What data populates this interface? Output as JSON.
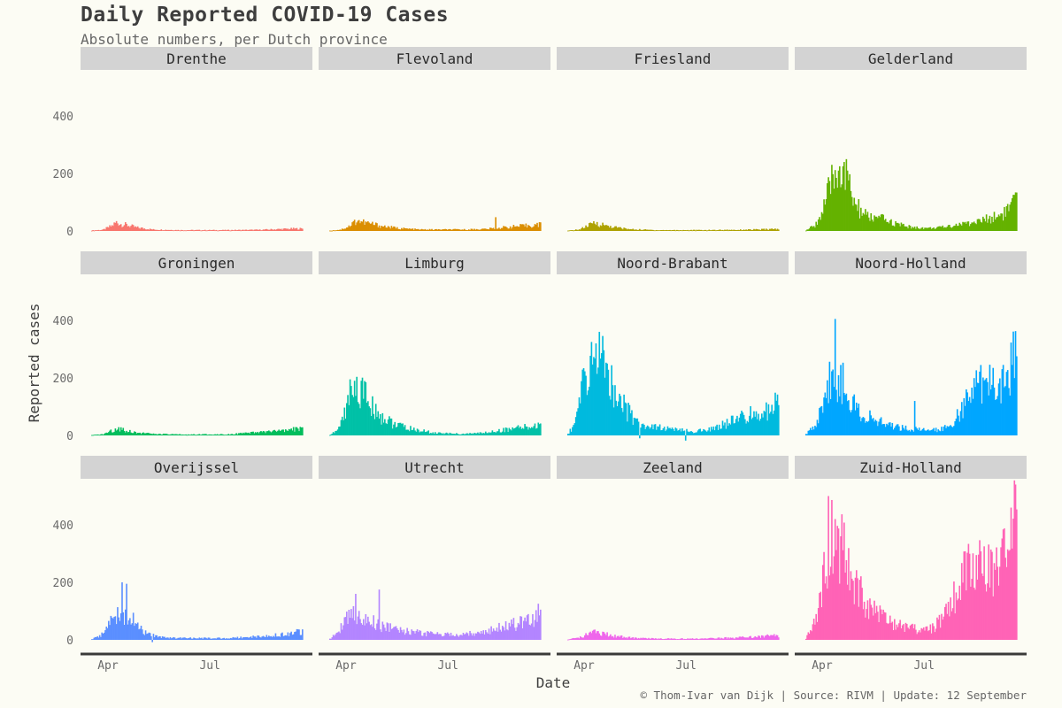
{
  "chart_data": {
    "type": "bar",
    "layout": "facet-grid-3x4",
    "title": "Daily Reported COVID-19 Cases",
    "subtitle": "Absolute numbers, per Dutch province",
    "xlabel": "Date",
    "ylabel": "Reported cases",
    "caption": "© Thom-Ivar van Dijk | Source: RIVM | Update: 12 September",
    "xlim_days": [
      0,
      188
    ],
    "ylim": [
      -20,
      540
    ],
    "yticks": [
      0,
      200,
      400
    ],
    "xticks": [
      {
        "label": "Apr",
        "day": 15
      },
      {
        "label": "Jul",
        "day": 106
      }
    ],
    "series": [
      {
        "name": "Drenthe",
        "color": "#F8766D",
        "profile": [
          [
            0,
            2
          ],
          [
            10,
            4
          ],
          [
            18,
            18
          ],
          [
            22,
            30
          ],
          [
            26,
            24
          ],
          [
            32,
            20
          ],
          [
            40,
            12
          ],
          [
            55,
            5
          ],
          [
            80,
            3
          ],
          [
            120,
            3
          ],
          [
            150,
            4
          ],
          [
            165,
            6
          ],
          [
            180,
            8
          ],
          [
            188,
            8
          ]
        ]
      },
      {
        "name": "Flevoland",
        "color": "#DB8E00",
        "profile": [
          [
            0,
            1
          ],
          [
            10,
            5
          ],
          [
            18,
            18
          ],
          [
            24,
            38
          ],
          [
            30,
            30
          ],
          [
            38,
            24
          ],
          [
            48,
            16
          ],
          [
            60,
            10
          ],
          [
            80,
            5
          ],
          [
            120,
            5
          ],
          [
            140,
            7
          ],
          [
            160,
            14
          ],
          [
            175,
            18
          ],
          [
            188,
            22
          ]
        ],
        "spikes": [
          [
            148,
            48
          ]
        ]
      },
      {
        "name": "Friesland",
        "color": "#AEA200",
        "profile": [
          [
            0,
            1
          ],
          [
            10,
            5
          ],
          [
            18,
            18
          ],
          [
            24,
            28
          ],
          [
            30,
            22
          ],
          [
            40,
            14
          ],
          [
            55,
            6
          ],
          [
            80,
            3
          ],
          [
            120,
            3
          ],
          [
            150,
            4
          ],
          [
            170,
            5
          ],
          [
            188,
            7
          ]
        ]
      },
      {
        "name": "Gelderland",
        "color": "#64B200",
        "profile": [
          [
            0,
            2
          ],
          [
            8,
            20
          ],
          [
            14,
            60
          ],
          [
            20,
            130
          ],
          [
            24,
            180
          ],
          [
            28,
            210
          ],
          [
            34,
            200
          ],
          [
            38,
            160
          ],
          [
            44,
            90
          ],
          [
            52,
            55
          ],
          [
            60,
            45
          ],
          [
            70,
            40
          ],
          [
            80,
            25
          ],
          [
            95,
            12
          ],
          [
            110,
            10
          ],
          [
            120,
            12
          ],
          [
            135,
            22
          ],
          [
            150,
            30
          ],
          [
            165,
            45
          ],
          [
            175,
            60
          ],
          [
            182,
            80
          ],
          [
            188,
            110
          ]
        ],
        "spikes": [
          [
            23,
            230
          ],
          [
            30,
            225
          ],
          [
            33,
            225
          ],
          [
            37,
            210
          ]
        ]
      },
      {
        "name": "Groningen",
        "color": "#00BD5C",
        "profile": [
          [
            0,
            1
          ],
          [
            10,
            4
          ],
          [
            18,
            16
          ],
          [
            24,
            25
          ],
          [
            30,
            18
          ],
          [
            40,
            10
          ],
          [
            55,
            5
          ],
          [
            80,
            3
          ],
          [
            120,
            4
          ],
          [
            140,
            8
          ],
          [
            160,
            14
          ],
          [
            175,
            16
          ],
          [
            186,
            25
          ],
          [
            188,
            35
          ]
        ]
      },
      {
        "name": "Limburg",
        "color": "#00C1A7",
        "profile": [
          [
            0,
            2
          ],
          [
            6,
            15
          ],
          [
            12,
            60
          ],
          [
            18,
            130
          ],
          [
            22,
            150
          ],
          [
            26,
            155
          ],
          [
            30,
            140
          ],
          [
            36,
            110
          ],
          [
            42,
            80
          ],
          [
            50,
            55
          ],
          [
            60,
            35
          ],
          [
            75,
            20
          ],
          [
            95,
            8
          ],
          [
            120,
            5
          ],
          [
            140,
            10
          ],
          [
            160,
            22
          ],
          [
            175,
            28
          ],
          [
            188,
            35
          ]
        ],
        "spikes": [
          [
            18,
            195
          ],
          [
            22,
            190
          ],
          [
            28,
            190
          ],
          [
            32,
            185
          ]
        ]
      },
      {
        "name": "Noord-Brabant",
        "color": "#00BADE",
        "profile": [
          [
            0,
            5
          ],
          [
            6,
            40
          ],
          [
            12,
            150
          ],
          [
            18,
            220
          ],
          [
            22,
            260
          ],
          [
            26,
            280
          ],
          [
            30,
            260
          ],
          [
            36,
            210
          ],
          [
            42,
            160
          ],
          [
            50,
            100
          ],
          [
            58,
            60
          ],
          [
            66,
            40
          ],
          [
            80,
            28
          ],
          [
            95,
            20
          ],
          [
            110,
            14
          ],
          [
            125,
            18
          ],
          [
            140,
            40
          ],
          [
            155,
            60
          ],
          [
            165,
            75
          ],
          [
            175,
            85
          ],
          [
            182,
            95
          ],
          [
            188,
            110
          ]
        ],
        "spikes": [
          [
            21,
            325
          ],
          [
            25,
            320
          ]
        ],
        "dips": [
          [
            64,
            -10
          ],
          [
            105,
            -18
          ]
        ]
      },
      {
        "name": "Noord-Holland",
        "color": "#00A6FF",
        "profile": [
          [
            0,
            4
          ],
          [
            8,
            35
          ],
          [
            14,
            110
          ],
          [
            20,
            170
          ],
          [
            26,
            210
          ],
          [
            30,
            200
          ],
          [
            36,
            150
          ],
          [
            44,
            100
          ],
          [
            52,
            70
          ],
          [
            62,
            50
          ],
          [
            75,
            35
          ],
          [
            90,
            25
          ],
          [
            105,
            18
          ],
          [
            118,
            20
          ],
          [
            130,
            40
          ],
          [
            140,
            95
          ],
          [
            148,
            150
          ],
          [
            156,
            180
          ],
          [
            164,
            175
          ],
          [
            172,
            185
          ],
          [
            178,
            210
          ],
          [
            184,
            260
          ],
          [
            188,
            320
          ]
        ],
        "spikes": [
          [
            26,
            405
          ],
          [
            31,
            245
          ],
          [
            97,
            120
          ]
        ]
      },
      {
        "name": "Overijssel",
        "color": "#5B8FFF",
        "profile": [
          [
            0,
            2
          ],
          [
            8,
            15
          ],
          [
            14,
            45
          ],
          [
            20,
            80
          ],
          [
            26,
            95
          ],
          [
            30,
            90
          ],
          [
            36,
            70
          ],
          [
            42,
            40
          ],
          [
            50,
            20
          ],
          [
            60,
            10
          ],
          [
            80,
            6
          ],
          [
            120,
            6
          ],
          [
            150,
            12
          ],
          [
            170,
            18
          ],
          [
            182,
            25
          ],
          [
            188,
            30
          ]
        ],
        "spikes": [
          [
            27,
            200
          ],
          [
            31,
            195
          ]
        ],
        "dips": [
          [
            54,
            -8
          ]
        ]
      },
      {
        "name": "Utrecht",
        "color": "#B385FF",
        "profile": [
          [
            0,
            3
          ],
          [
            8,
            30
          ],
          [
            14,
            70
          ],
          [
            20,
            90
          ],
          [
            26,
            85
          ],
          [
            34,
            70
          ],
          [
            44,
            50
          ],
          [
            56,
            40
          ],
          [
            70,
            30
          ],
          [
            85,
            22
          ],
          [
            100,
            18
          ],
          [
            115,
            18
          ],
          [
            130,
            25
          ],
          [
            145,
            35
          ],
          [
            160,
            50
          ],
          [
            172,
            60
          ],
          [
            182,
            80
          ],
          [
            188,
            110
          ]
        ],
        "spikes": [
          [
            23,
            160
          ],
          [
            44,
            175
          ]
        ]
      },
      {
        "name": "Zeeland",
        "color": "#EF67EB",
        "profile": [
          [
            0,
            1
          ],
          [
            10,
            8
          ],
          [
            18,
            20
          ],
          [
            24,
            30
          ],
          [
            30,
            24
          ],
          [
            40,
            14
          ],
          [
            55,
            8
          ],
          [
            80,
            4
          ],
          [
            120,
            4
          ],
          [
            150,
            8
          ],
          [
            170,
            12
          ],
          [
            188,
            15
          ]
        ]
      },
      {
        "name": "Zuid-Holland",
        "color": "#FF63B6",
        "profile": [
          [
            0,
            5
          ],
          [
            8,
            60
          ],
          [
            14,
            200
          ],
          [
            20,
            320
          ],
          [
            26,
            360
          ],
          [
            32,
            330
          ],
          [
            40,
            250
          ],
          [
            48,
            170
          ],
          [
            56,
            120
          ],
          [
            64,
            90
          ],
          [
            75,
            60
          ],
          [
            88,
            45
          ],
          [
            100,
            35
          ],
          [
            112,
            40
          ],
          [
            122,
            70
          ],
          [
            132,
            140
          ],
          [
            142,
            220
          ],
          [
            150,
            280
          ],
          [
            158,
            260
          ],
          [
            166,
            230
          ],
          [
            174,
            250
          ],
          [
            180,
            300
          ],
          [
            186,
            420
          ],
          [
            188,
            450
          ]
        ],
        "spikes": [
          [
            20,
            500
          ],
          [
            26,
            420
          ],
          [
            31,
            360
          ],
          [
            187,
            540
          ]
        ]
      }
    ]
  }
}
